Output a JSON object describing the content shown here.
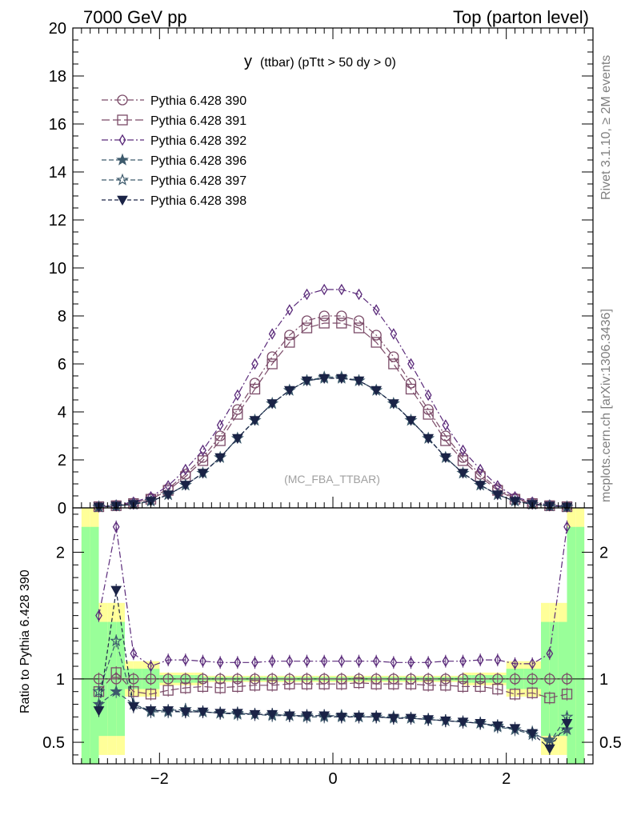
{
  "header": {
    "left": "7000 GeV pp",
    "right": "Top (parton level)"
  },
  "side_labels": {
    "rivet": "Rivet 3.1.10, ≥ 2M events",
    "mcplots": "mcplots.cern.ch [arXiv:1306.3436]"
  },
  "chart_data": {
    "type": "line",
    "title_main": "y",
    "title_sub": "(ttbar) (pTtt > 50 dy > 0)",
    "watermark": "(MC_FBA_TTBAR)",
    "xlim": [
      -3.0,
      3.0
    ],
    "x_ticks": [
      -2,
      0,
      2
    ],
    "x_tick_labels": [
      "−2",
      "0",
      "2"
    ],
    "main": {
      "ylim": [
        0,
        20
      ],
      "y_ticks": [
        0,
        2,
        4,
        6,
        8,
        10,
        12,
        14,
        16,
        18,
        20
      ],
      "y_tick_labels": [
        "0",
        "2",
        "4",
        "6",
        "8",
        "10",
        "12",
        "14",
        "16",
        "18",
        "20"
      ]
    },
    "ratio": {
      "ylabel": "Ratio to Pythia 6.428 390",
      "ylim": [
        0.33,
        2.35
      ],
      "y_ticks": [
        0.5,
        1,
        2
      ],
      "y_tick_labels": [
        "0.5",
        "1",
        "2"
      ]
    },
    "curve_model": {
      "x": [
        -2.7,
        -2.5,
        -2.3,
        -2.1,
        -1.9,
        -1.7,
        -1.5,
        -1.3,
        -1.1,
        -0.9,
        -0.7,
        -0.5,
        -0.3,
        -0.1,
        0.1,
        0.3,
        0.5,
        0.7,
        0.9,
        1.1,
        1.3,
        1.5,
        1.7,
        1.9,
        2.1,
        2.3,
        2.5,
        2.7
      ],
      "note_values_per_series_follow": true
    },
    "series": [
      {
        "name": "Pythia 6.428 390",
        "color": "#7b4b68",
        "marker": "circle-open",
        "dash": "8,3,2,3",
        "values": [
          0.05,
          0.1,
          0.2,
          0.4,
          0.8,
          1.4,
          2.1,
          3.0,
          4.1,
          5.2,
          6.3,
          7.2,
          7.8,
          8.0,
          8.0,
          7.8,
          7.2,
          6.3,
          5.2,
          4.1,
          3.0,
          2.1,
          1.4,
          0.8,
          0.4,
          0.2,
          0.1,
          0.05
        ],
        "ratio": [
          1.0,
          1.0,
          1.0,
          1.0,
          1.0,
          1.0,
          1.0,
          1.0,
          1.0,
          1.0,
          1.0,
          1.0,
          1.0,
          1.0,
          1.0,
          1.0,
          1.0,
          1.0,
          1.0,
          1.0,
          1.0,
          1.0,
          1.0,
          1.0,
          1.0,
          1.0,
          1.0,
          1.0
        ]
      },
      {
        "name": "Pythia 6.428 391",
        "color": "#7b4b68",
        "marker": "square-open",
        "dash": "10,4",
        "values": [
          0.05,
          0.09,
          0.18,
          0.36,
          0.73,
          1.3,
          1.97,
          2.8,
          3.9,
          4.95,
          6.0,
          6.9,
          7.5,
          7.7,
          7.7,
          7.5,
          6.9,
          6.0,
          4.95,
          3.9,
          2.8,
          1.97,
          1.3,
          0.73,
          0.36,
          0.18,
          0.09,
          0.05
        ],
        "ratio": [
          0.9,
          1.05,
          0.9,
          0.88,
          0.91,
          0.93,
          0.94,
          0.93,
          0.94,
          0.95,
          0.95,
          0.96,
          0.96,
          0.96,
          0.96,
          0.97,
          0.96,
          0.96,
          0.96,
          0.95,
          0.95,
          0.94,
          0.94,
          0.92,
          0.88,
          0.89,
          0.85,
          0.88
        ]
      },
      {
        "name": "Pythia 6.428 392",
        "color": "#5a2a7a",
        "marker": "diamond-open",
        "dash": "8,3,2,3",
        "values": [
          0.06,
          0.12,
          0.24,
          0.46,
          0.92,
          1.6,
          2.4,
          3.45,
          4.7,
          6.0,
          7.25,
          8.25,
          8.9,
          9.1,
          9.1,
          8.9,
          8.25,
          7.25,
          6.0,
          4.7,
          3.45,
          2.4,
          1.6,
          0.92,
          0.46,
          0.24,
          0.12,
          0.06
        ],
        "ratio": [
          1.5,
          2.2,
          1.2,
          1.1,
          1.15,
          1.15,
          1.14,
          1.13,
          1.13,
          1.13,
          1.14,
          1.14,
          1.14,
          1.14,
          1.14,
          1.14,
          1.14,
          1.13,
          1.13,
          1.13,
          1.14,
          1.14,
          1.15,
          1.15,
          1.12,
          1.12,
          1.2,
          2.2
        ]
      },
      {
        "name": "Pythia 6.428 396",
        "color": "#3d5a6c",
        "marker": "star-filled",
        "dash": "6,3",
        "values": [
          0.04,
          0.08,
          0.15,
          0.28,
          0.55,
          0.95,
          1.45,
          2.1,
          2.9,
          3.65,
          4.35,
          4.9,
          5.3,
          5.4,
          5.4,
          5.3,
          4.9,
          4.35,
          3.65,
          2.9,
          2.1,
          1.45,
          0.95,
          0.55,
          0.28,
          0.15,
          0.08,
          0.04
        ],
        "ratio": [
          0.8,
          0.9,
          0.8,
          0.74,
          0.74,
          0.74,
          0.74,
          0.73,
          0.72,
          0.72,
          0.71,
          0.71,
          0.7,
          0.7,
          0.7,
          0.7,
          0.7,
          0.69,
          0.69,
          0.68,
          0.67,
          0.66,
          0.65,
          0.63,
          0.6,
          0.56,
          0.52,
          0.6
        ]
      },
      {
        "name": "Pythia 6.428 397",
        "color": "#3d5a6c",
        "marker": "star-open",
        "dash": "6,3",
        "values": [
          0.04,
          0.08,
          0.15,
          0.28,
          0.55,
          0.95,
          1.45,
          2.1,
          2.9,
          3.65,
          4.35,
          4.9,
          5.3,
          5.45,
          5.45,
          5.3,
          4.9,
          4.35,
          3.65,
          2.9,
          2.1,
          1.45,
          0.95,
          0.55,
          0.28,
          0.15,
          0.08,
          0.04
        ],
        "ratio": [
          0.9,
          1.3,
          0.8,
          0.75,
          0.75,
          0.76,
          0.74,
          0.73,
          0.73,
          0.72,
          0.72,
          0.71,
          0.71,
          0.71,
          0.71,
          0.7,
          0.7,
          0.7,
          0.69,
          0.68,
          0.67,
          0.66,
          0.65,
          0.62,
          0.6,
          0.58,
          0.5,
          0.7
        ]
      },
      {
        "name": "Pythia 6.428 398",
        "color": "#1a2346",
        "marker": "triangle-down-filled",
        "dash": "5,3",
        "values": [
          0.04,
          0.08,
          0.15,
          0.28,
          0.55,
          0.95,
          1.45,
          2.1,
          2.9,
          3.65,
          4.35,
          4.9,
          5.3,
          5.4,
          5.4,
          5.3,
          4.9,
          4.35,
          3.65,
          2.9,
          2.1,
          1.45,
          0.95,
          0.55,
          0.28,
          0.15,
          0.08,
          0.04
        ],
        "ratio": [
          0.75,
          1.7,
          0.78,
          0.75,
          0.75,
          0.74,
          0.74,
          0.73,
          0.73,
          0.72,
          0.72,
          0.71,
          0.71,
          0.71,
          0.7,
          0.7,
          0.7,
          0.69,
          0.69,
          0.68,
          0.67,
          0.66,
          0.65,
          0.63,
          0.61,
          0.57,
          0.45,
          0.65
        ]
      }
    ],
    "ratio_band": {
      "note": "Yellow and green uncertainty bands around ratio 1",
      "yellow_color": "#ffff99",
      "green_color": "#99ff99"
    }
  }
}
